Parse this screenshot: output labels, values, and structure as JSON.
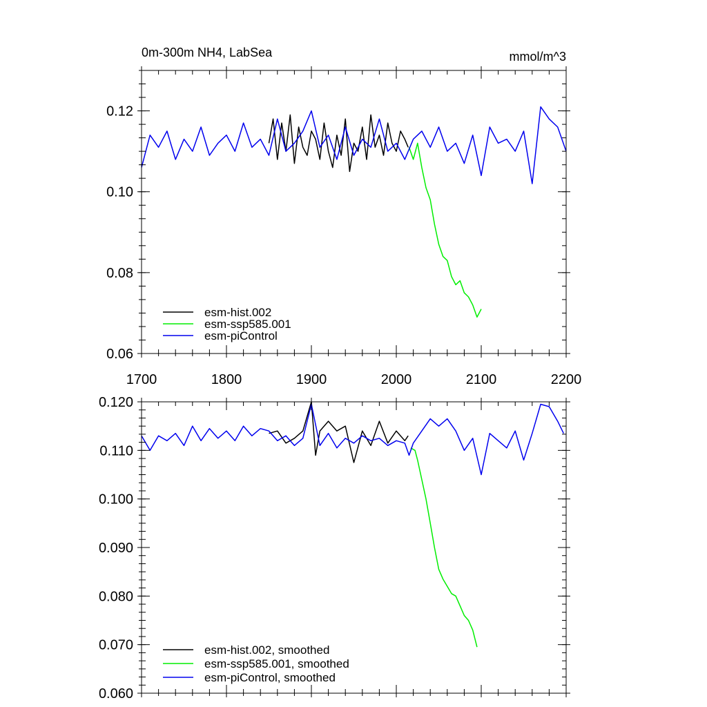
{
  "figure": {
    "title_left": "0m-300m NH4, LabSea",
    "title_right": "mmol/m^3"
  },
  "colors": {
    "esm-hist.002": "#000000",
    "esm-ssp585.001": "#00ee00",
    "esm-piControl": "#0000ee"
  },
  "chart_data": [
    {
      "type": "line",
      "title": "0m-300m NH4, LabSea",
      "units": "mmol/m^3",
      "xlim": [
        1700,
        2200
      ],
      "ylim": [
        0.06,
        0.13
      ],
      "x_ticks": [
        1700,
        1800,
        1900,
        2000,
        2100,
        2200
      ],
      "x_tick_labels": [
        "1700",
        "1800",
        "1900",
        "2000",
        "2100",
        "2200"
      ],
      "y_ticks": [
        0.06,
        0.08,
        0.1,
        0.12
      ],
      "y_tick_labels": [
        "0.06",
        "0.08",
        "0.10",
        "0.12"
      ],
      "legend_position": "bottom-left",
      "series": [
        {
          "name": "esm-hist.002",
          "color_key": "esm-hist.002",
          "x": [
            1850,
            1855,
            1860,
            1865,
            1870,
            1875,
            1880,
            1885,
            1890,
            1895,
            1900,
            1905,
            1910,
            1915,
            1920,
            1925,
            1930,
            1935,
            1940,
            1945,
            1950,
            1955,
            1960,
            1965,
            1970,
            1975,
            1980,
            1985,
            1990,
            1995,
            2000,
            2005,
            2010,
            2014
          ],
          "y": [
            0.112,
            0.118,
            0.108,
            0.117,
            0.11,
            0.119,
            0.107,
            0.116,
            0.111,
            0.109,
            0.115,
            0.113,
            0.108,
            0.117,
            0.11,
            0.106,
            0.114,
            0.109,
            0.118,
            0.105,
            0.112,
            0.11,
            0.116,
            0.108,
            0.119,
            0.111,
            0.114,
            0.109,
            0.117,
            0.112,
            0.11,
            0.115,
            0.113,
            0.111
          ]
        },
        {
          "name": "esm-ssp585.001",
          "color_key": "esm-ssp585.001",
          "x": [
            2015,
            2020,
            2025,
            2030,
            2035,
            2040,
            2045,
            2050,
            2055,
            2060,
            2065,
            2070,
            2075,
            2080,
            2085,
            2090,
            2095,
            2100
          ],
          "y": [
            0.111,
            0.108,
            0.112,
            0.106,
            0.101,
            0.098,
            0.092,
            0.087,
            0.084,
            0.083,
            0.079,
            0.077,
            0.078,
            0.075,
            0.074,
            0.072,
            0.069,
            0.071
          ]
        },
        {
          "name": "esm-piControl",
          "color_key": "esm-piControl",
          "x": [
            1700,
            1710,
            1720,
            1730,
            1740,
            1750,
            1760,
            1770,
            1780,
            1790,
            1800,
            1810,
            1820,
            1830,
            1840,
            1850,
            1860,
            1870,
            1880,
            1890,
            1900,
            1910,
            1920,
            1930,
            1940,
            1950,
            1960,
            1970,
            1980,
            1990,
            2000,
            2010,
            2020,
            2030,
            2040,
            2050,
            2060,
            2070,
            2080,
            2090,
            2100,
            2110,
            2120,
            2130,
            2140,
            2150,
            2160,
            2170,
            2180,
            2190,
            2200
          ],
          "y": [
            0.106,
            0.114,
            0.111,
            0.115,
            0.108,
            0.113,
            0.11,
            0.116,
            0.109,
            0.112,
            0.114,
            0.11,
            0.117,
            0.111,
            0.113,
            0.109,
            0.118,
            0.11,
            0.112,
            0.115,
            0.12,
            0.111,
            0.114,
            0.108,
            0.116,
            0.109,
            0.113,
            0.111,
            0.118,
            0.11,
            0.112,
            0.108,
            0.113,
            0.115,
            0.111,
            0.116,
            0.11,
            0.112,
            0.107,
            0.114,
            0.104,
            0.116,
            0.112,
            0.113,
            0.11,
            0.115,
            0.102,
            0.121,
            0.118,
            0.116,
            0.11
          ]
        }
      ]
    },
    {
      "type": "line",
      "xlim": [
        1700,
        2200
      ],
      "ylim": [
        0.06,
        0.12
      ],
      "x_ticks": [
        1700,
        1800,
        1900,
        2000,
        2100,
        2200
      ],
      "y_ticks": [
        0.06,
        0.07,
        0.08,
        0.09,
        0.1,
        0.11,
        0.12
      ],
      "y_tick_labels": [
        "0.060",
        "0.070",
        "0.080",
        "0.090",
        "0.100",
        "0.110",
        "0.120"
      ],
      "legend_position": "bottom-left",
      "series": [
        {
          "name": "esm-hist.002, smoothed",
          "color_key": "esm-hist.002",
          "x": [
            1850,
            1860,
            1870,
            1880,
            1890,
            1900,
            1905,
            1910,
            1920,
            1930,
            1940,
            1950,
            1960,
            1970,
            1980,
            1990,
            2000,
            2010,
            2014
          ],
          "y": [
            0.1135,
            0.114,
            0.1115,
            0.1125,
            0.114,
            0.12,
            0.109,
            0.114,
            0.116,
            0.114,
            0.115,
            0.1075,
            0.114,
            0.111,
            0.116,
            0.1115,
            0.114,
            0.112,
            0.113
          ]
        },
        {
          "name": "esm-ssp585.001, smoothed",
          "color_key": "esm-ssp585.001",
          "x": [
            2017,
            2022,
            2025,
            2030,
            2035,
            2040,
            2045,
            2050,
            2055,
            2060,
            2065,
            2070,
            2075,
            2080,
            2085,
            2090,
            2095
          ],
          "y": [
            0.1105,
            0.11,
            0.108,
            0.104,
            0.1,
            0.095,
            0.09,
            0.0855,
            0.0835,
            0.082,
            0.0805,
            0.08,
            0.078,
            0.076,
            0.075,
            0.073,
            0.0695
          ]
        },
        {
          "name": "esm-piControl, smoothed",
          "color_key": "esm-piControl",
          "x": [
            1700,
            1710,
            1720,
            1730,
            1740,
            1750,
            1760,
            1770,
            1780,
            1790,
            1800,
            1810,
            1820,
            1830,
            1840,
            1850,
            1860,
            1870,
            1880,
            1890,
            1900,
            1910,
            1920,
            1930,
            1940,
            1950,
            1960,
            1970,
            1980,
            1990,
            2000,
            2010,
            2015,
            2020,
            2030,
            2040,
            2050,
            2060,
            2070,
            2080,
            2090,
            2100,
            2110,
            2120,
            2130,
            2140,
            2150,
            2160,
            2170,
            2180,
            2190,
            2197
          ],
          "y": [
            0.113,
            0.11,
            0.113,
            0.112,
            0.1135,
            0.111,
            0.115,
            0.112,
            0.1145,
            0.1125,
            0.114,
            0.112,
            0.115,
            0.113,
            0.1145,
            0.114,
            0.112,
            0.113,
            0.111,
            0.1125,
            0.1195,
            0.111,
            0.1135,
            0.1105,
            0.1125,
            0.1115,
            0.113,
            0.112,
            0.1125,
            0.111,
            0.112,
            0.1115,
            0.109,
            0.1115,
            0.114,
            0.1165,
            0.115,
            0.1165,
            0.114,
            0.11,
            0.1125,
            0.105,
            0.1135,
            0.112,
            0.1105,
            0.114,
            0.108,
            0.1135,
            0.1195,
            0.119,
            0.116,
            0.1135
          ]
        }
      ]
    }
  ]
}
